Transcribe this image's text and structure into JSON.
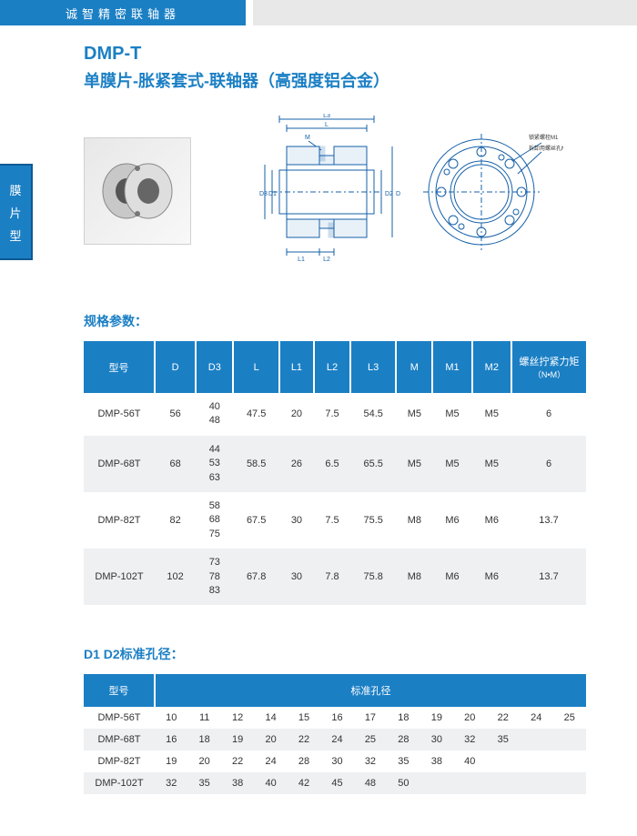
{
  "header": {
    "brand": "诚智精密联轴器"
  },
  "sideTab": {
    "c1": "膜",
    "c2": "片",
    "c3": "型"
  },
  "title": {
    "code": "DMP-T",
    "sub": "单膜片-胀紧套式-联轴器（高强度铝合金）"
  },
  "diagram": {
    "labels": {
      "L3": "L3",
      "L": "L",
      "M": "M",
      "D3": "D3",
      "D1": "D1",
      "D2": "D2",
      "D": "D",
      "L1": "L1",
      "L2": "L2",
      "note1": "锁紧螺栓M1",
      "note2": "拆卸用螺丝孔M2"
    }
  },
  "spec": {
    "heading": "规格参数：",
    "cols": [
      "型号",
      "D",
      "D3",
      "L",
      "L1",
      "L2",
      "L3",
      "M",
      "M1",
      "M2"
    ],
    "torqueCol": "螺丝拧紧力矩",
    "torqueUnit": "（N•M）",
    "rows": [
      {
        "model": "DMP-56T",
        "D": "56",
        "D3": "40\n48",
        "L": "47.5",
        "L1": "20",
        "L2": "7.5",
        "L3": "54.5",
        "M": "M5",
        "M1": "M5",
        "M2": "M5",
        "T": "6"
      },
      {
        "model": "DMP-68T",
        "D": "68",
        "D3": "44\n53\n63",
        "L": "58.5",
        "L1": "26",
        "L2": "6.5",
        "L3": "65.5",
        "M": "M5",
        "M1": "M5",
        "M2": "M5",
        "T": "6"
      },
      {
        "model": "DMP-82T",
        "D": "82",
        "D3": "58\n68\n75",
        "L": "67.5",
        "L1": "30",
        "L2": "7.5",
        "L3": "75.5",
        "M": "M8",
        "M1": "M6",
        "M2": "M6",
        "T": "13.7"
      },
      {
        "model": "DMP-102T",
        "D": "102",
        "D3": "73\n78\n83",
        "L": "67.8",
        "L1": "30",
        "L2": "7.8",
        "L3": "75.8",
        "M": "M8",
        "M1": "M6",
        "M2": "M6",
        "T": "13.7"
      }
    ]
  },
  "bore": {
    "heading": "D1 D2标准孔径：",
    "col0": "型号",
    "colRest": "标准孔径",
    "rows": [
      {
        "model": "DMP-56T",
        "v": [
          "10",
          "11",
          "12",
          "14",
          "15",
          "16",
          "17",
          "18",
          "19",
          "20",
          "22",
          "24",
          "25"
        ]
      },
      {
        "model": "DMP-68T",
        "v": [
          "16",
          "18",
          "19",
          "20",
          "22",
          "24",
          "25",
          "28",
          "30",
          "32",
          "35",
          "",
          ""
        ]
      },
      {
        "model": "DMP-82T",
        "v": [
          "19",
          "20",
          "22",
          "24",
          "28",
          "30",
          "32",
          "35",
          "38",
          "40",
          "",
          "",
          ""
        ]
      },
      {
        "model": "DMP-102T",
        "v": [
          "32",
          "35",
          "38",
          "40",
          "42",
          "45",
          "48",
          "50",
          "",
          "",
          "",
          "",
          ""
        ]
      }
    ]
  }
}
